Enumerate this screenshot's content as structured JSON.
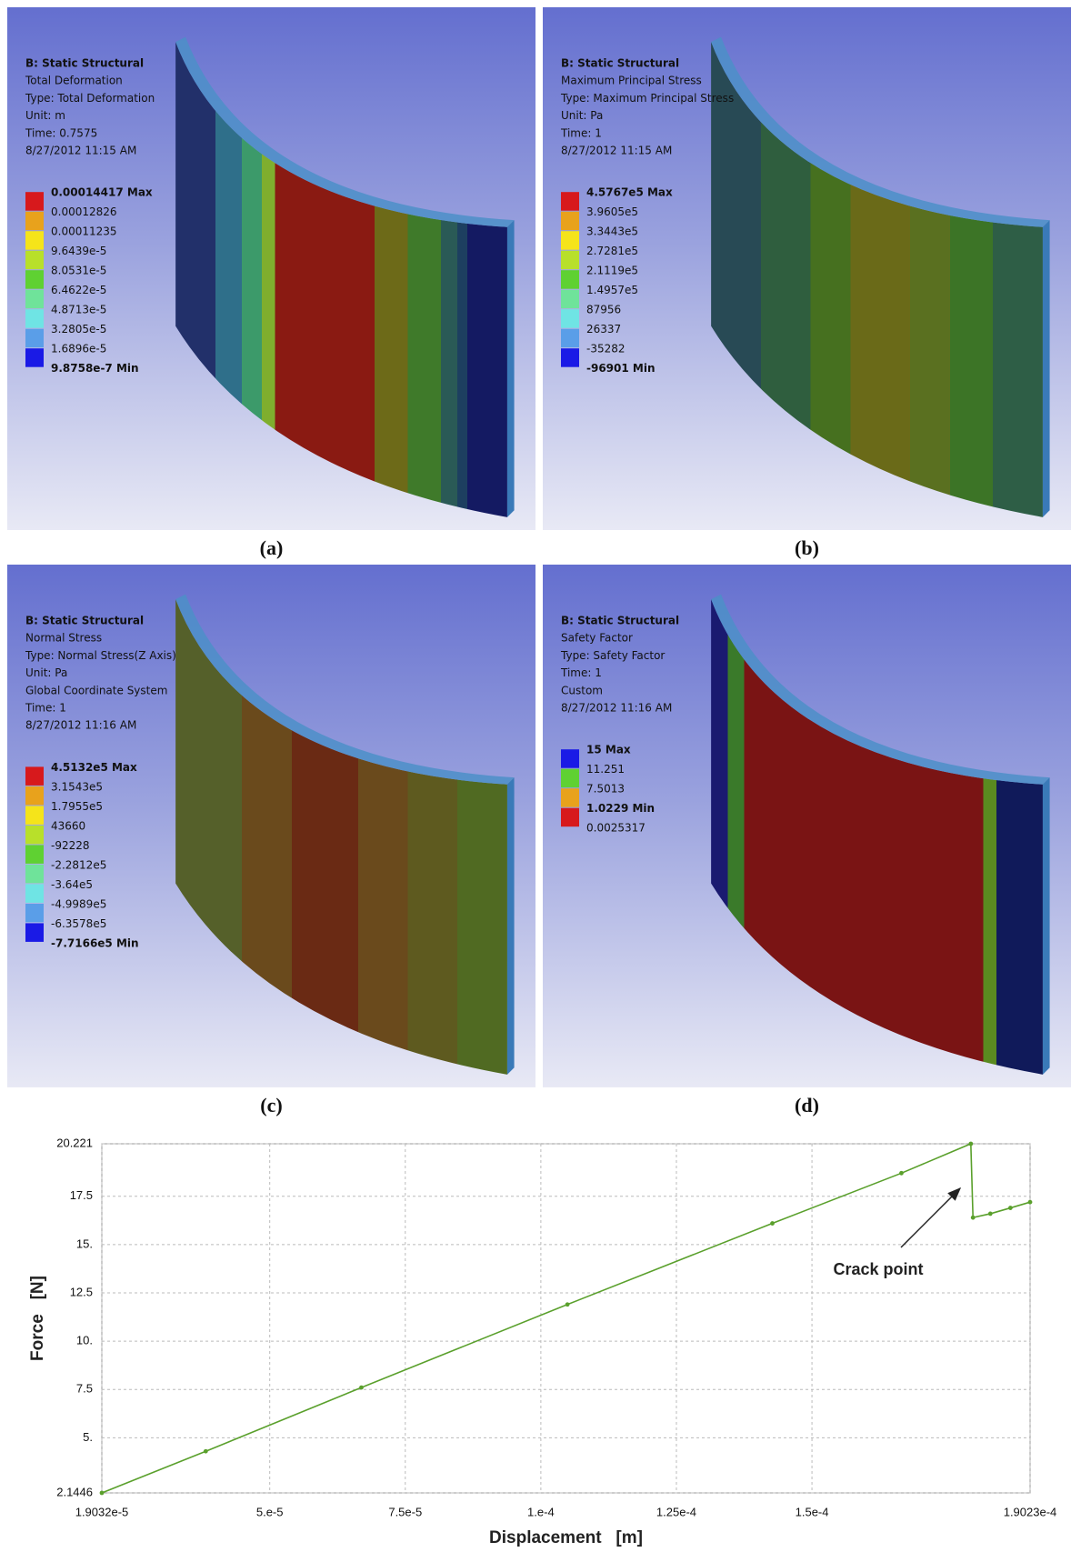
{
  "panels": [
    {
      "caption": "(a)",
      "header": [
        "B: Static Structural",
        "Total Deformation",
        "Type: Total Deformation",
        "Unit: m",
        "Time: 0.7575",
        "8/27/2012 11:15 AM"
      ],
      "legend": {
        "labels": [
          "0.00014417 Max",
          "0.00012826",
          "0.00011235",
          "9.6439e-5",
          "8.0531e-5",
          "6.4622e-5",
          "4.8713e-5",
          "3.2805e-5",
          "1.6896e-5",
          "9.8758e-7 Min"
        ],
        "colors": [
          "#d7191c",
          "#e8a21c",
          "#f5e41a",
          "#b8e02a",
          "#5fd132",
          "#6fe39a",
          "#6fe4e4",
          "#5a9ee8",
          "#1a1ae6"
        ]
      }
    },
    {
      "caption": "(b)",
      "header": [
        "B: Static Structural",
        "Maximum Principal Stress",
        "Type: Maximum Principal Stress",
        "Unit: Pa",
        "Time: 1",
        "8/27/2012 11:15 AM"
      ],
      "legend": {
        "labels": [
          "4.5767e5 Max",
          "3.9605e5",
          "3.3443e5",
          "2.7281e5",
          "2.1119e5",
          "1.4957e5",
          "87956",
          "26337",
          "-35282",
          "-96901 Min"
        ],
        "colors": [
          "#d7191c",
          "#e8a21c",
          "#f5e41a",
          "#b8e02a",
          "#5fd132",
          "#6fe39a",
          "#6fe4e4",
          "#5a9ee8",
          "#1a1ae6"
        ]
      }
    },
    {
      "caption": "(c)",
      "header": [
        "B: Static Structural",
        "Normal Stress",
        "Type: Normal Stress(Z Axis)",
        "Unit: Pa",
        "Global Coordinate System",
        "Time: 1",
        "8/27/2012 11:16 AM"
      ],
      "legend": {
        "labels": [
          "4.5132e5 Max",
          "3.1543e5",
          "1.7955e5",
          "43660",
          "-92228",
          "-2.2812e5",
          "-3.64e5",
          "-4.9989e5",
          "-6.3578e5",
          "-7.7166e5 Min"
        ],
        "colors": [
          "#d7191c",
          "#e8a21c",
          "#f5e41a",
          "#b8e02a",
          "#5fd132",
          "#6fe39a",
          "#6fe4e4",
          "#5a9ee8",
          "#1a1ae6"
        ]
      }
    },
    {
      "caption": "(d)",
      "header": [
        "B: Static Structural",
        "Safety Factor",
        "Type: Safety Factor",
        "Time: 1",
        "Custom",
        "8/27/2012 11:16 AM"
      ],
      "legend": {
        "labels": [
          "15 Max",
          "11.251",
          "7.5013",
          "1.0229 Min",
          "0.0025317"
        ],
        "colors": [
          "#1a1ae6",
          "#5fd132",
          "#e8a21c",
          "#d7191c"
        ]
      }
    }
  ],
  "chart_data": {
    "type": "line",
    "x_label": "Displacement   [m]",
    "y_label": "Force   [N]",
    "annotation": "Crack point",
    "x": [
      1.9032e-05,
      3.82e-05,
      6.69e-05,
      0.0001049,
      0.0001427,
      0.0001665,
      0.0001793,
      0.0001797,
      0.0001829,
      0.0001866,
      0.00019023
    ],
    "series": [
      {
        "color": "#5aa02c",
        "values": [
          2.1446,
          4.3,
          7.6,
          11.9,
          16.1,
          18.7,
          20.221,
          16.4,
          16.6,
          16.9,
          17.2
        ]
      }
    ],
    "xlim": [
      1.9032e-05,
      0.00019023
    ],
    "ylim": [
      2.1446,
      20.221
    ],
    "xticks": [
      {
        "value": 1.9032e-05,
        "label": "1.9032e-5"
      },
      {
        "value": 5e-05,
        "label": "5.e-5"
      },
      {
        "value": 7.5e-05,
        "label": "7.5e-5"
      },
      {
        "value": 0.0001,
        "label": "1.e-4"
      },
      {
        "value": 0.000125,
        "label": "1.25e-4"
      },
      {
        "value": 0.00015,
        "label": "1.5e-4"
      },
      {
        "value": 0.00019023,
        "label": "1.9023e-4"
      }
    ],
    "yticks": [
      2.1446,
      {
        "value": 5,
        "label": "5."
      },
      7.5,
      {
        "value": 10,
        "label": "10."
      },
      12.5,
      {
        "value": 15,
        "label": "15."
      },
      17.5,
      20.221
    ],
    "grid": true
  }
}
